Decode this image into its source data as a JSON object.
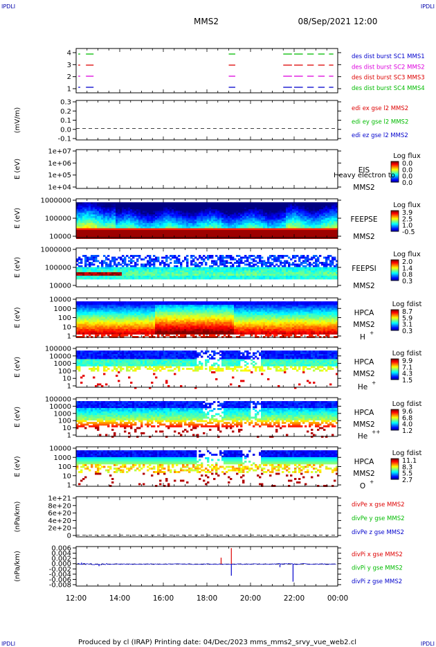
{
  "header": {
    "corner_tl": "IPDLI",
    "corner_tr": "IPDLI",
    "corner_bl": "IPDLI",
    "corner_br": "IPDLI",
    "spacecraft": "MMS2",
    "datetime": "08/Sep/2021 12:00"
  },
  "footer": {
    "text": "Produced by cl (IRAP)   Printing date: 04/Dec/2023   mms_mms2_srvy_vue_web2.cl"
  },
  "colors": {
    "blue": "#0000cc",
    "magenta": "#dd00dd",
    "red": "#dd0000",
    "green": "#00bb00"
  },
  "chart_data": [
    {
      "type": "line",
      "panel": "burst",
      "yticks": [
        "4",
        "3",
        "2",
        "1"
      ],
      "yrange": [
        0.5,
        4.5
      ],
      "legend": [
        {
          "text": "des dist burst SC1 MMS1",
          "color": "#0000cc"
        },
        {
          "text": "des dist burst SC2 MMS2",
          "color": "#dd00dd"
        },
        {
          "text": "des dist burst SC3 MMS3",
          "color": "#dd0000"
        },
        {
          "text": "des dist burst SC4 MMS4",
          "color": "#00bb00"
        }
      ],
      "segments": [
        {
          "level": 4,
          "color": "#00bb00",
          "spans": [
            [
              12.45,
              12.8
            ],
            [
              19.0,
              19.3
            ],
            [
              21.5,
              21.9
            ],
            [
              22.0,
              22.4
            ],
            [
              22.6,
              22.9
            ],
            [
              23.1,
              23.4
            ],
            [
              23.6,
              23.8
            ]
          ]
        },
        {
          "level": 3,
          "color": "#dd0000",
          "spans": [
            [
              12.45,
              12.8
            ],
            [
              19.0,
              19.3
            ],
            [
              21.5,
              21.9
            ],
            [
              22.0,
              22.4
            ],
            [
              22.6,
              22.9
            ],
            [
              23.1,
              23.4
            ],
            [
              23.6,
              23.8
            ]
          ]
        },
        {
          "level": 2,
          "color": "#dd00dd",
          "spans": [
            [
              12.45,
              12.8
            ],
            [
              19.0,
              19.3
            ],
            [
              21.5,
              21.9
            ],
            [
              22.0,
              22.4
            ],
            [
              22.6,
              22.9
            ],
            [
              23.1,
              23.4
            ],
            [
              23.6,
              23.8
            ]
          ]
        },
        {
          "level": 1,
          "color": "#0000cc",
          "spans": [
            [
              12.45,
              12.8
            ],
            [
              19.0,
              19.3
            ],
            [
              21.5,
              21.9
            ],
            [
              22.0,
              22.4
            ],
            [
              22.6,
              22.9
            ],
            [
              23.1,
              23.4
            ],
            [
              23.6,
              23.8
            ]
          ]
        }
      ]
    },
    {
      "type": "line",
      "panel": "edi",
      "ylabel": "(mV/m)",
      "yticks": [
        "0.3",
        "0.2",
        "0.1",
        "0.0",
        "-0.1"
      ],
      "yrange": [
        -0.13,
        0.32
      ],
      "zero_line": true,
      "legend": [
        {
          "text": "edi ex gse l2 MMS2",
          "color": "#dd0000"
        },
        {
          "text": "edi ey gse l2 MMS2",
          "color": "#00bb00"
        },
        {
          "text": "edi ez gse l2 MMS2",
          "color": "#0000cc"
        }
      ]
    },
    {
      "type": "heatmap",
      "panel": "eis",
      "ylabel": "E (eV)",
      "yticks": [
        "1e+07",
        "1e+06",
        "1e+05",
        "1e+04"
      ],
      "instrument": [
        "EIS",
        "MMS2"
      ],
      "overlay": "Heavy electron to",
      "cbar_title": "Log flux",
      "cbar_ticks": [
        "0.0",
        "0.0",
        "0.0",
        "0.0"
      ],
      "style": "empty"
    },
    {
      "type": "heatmap",
      "panel": "feepse",
      "ylabel": "E (eV)",
      "yticks": [
        "1000000",
        "100000",
        "10000"
      ],
      "instrument": [
        "FEEPSE",
        "MMS2"
      ],
      "cbar_title": "Log flux",
      "cbar_ticks": [
        "3.9",
        "2.5",
        "1.0",
        "-0.5"
      ],
      "style": "feeps_e"
    },
    {
      "type": "heatmap",
      "panel": "feepsi",
      "ylabel": "E (eV)",
      "yticks": [
        "1000000",
        "100000",
        "10000"
      ],
      "instrument": [
        "FEEPSI",
        "MMS2"
      ],
      "cbar_title": "Log flux",
      "cbar_ticks": [
        "2.0",
        "1.4",
        "0.8",
        "0.3"
      ],
      "style": "feeps_i"
    },
    {
      "type": "heatmap",
      "panel": "hpca_h",
      "ylabel": "E (eV)",
      "yticks": [
        "10000",
        "1000",
        "100",
        "10",
        "1"
      ],
      "instrument": [
        "HPCA",
        "MMS2"
      ],
      "species": "H",
      "charge": "+",
      "cbar_title": "Log fdist",
      "cbar_ticks": [
        "8.7",
        "5.9",
        "3.1",
        "0.3"
      ],
      "style": "hpca_h"
    },
    {
      "type": "heatmap",
      "panel": "hpca_he1",
      "ylabel": "E (eV)",
      "yticks": [
        "100000",
        "10000",
        "1000",
        "100",
        "10",
        "1"
      ],
      "instrument": [
        "HPCA",
        "MMS2"
      ],
      "species": "He",
      "charge": "+",
      "cbar_title": "Log fdist",
      "cbar_ticks": [
        "9.9",
        "7.1",
        "4.3",
        "1.5"
      ],
      "style": "hpca_he1"
    },
    {
      "type": "heatmap",
      "panel": "hpca_he2",
      "ylabel": "E (eV)",
      "yticks": [
        "100000",
        "10000",
        "1000",
        "100",
        "10",
        "1"
      ],
      "instrument": [
        "HPCA",
        "MMS2"
      ],
      "species": "He",
      "charge": "++",
      "cbar_title": "Log fdist",
      "cbar_ticks": [
        "9.6",
        "6.8",
        "4.0",
        "1.2"
      ],
      "style": "hpca_he2"
    },
    {
      "type": "heatmap",
      "panel": "hpca_o",
      "ylabel": "E (eV)",
      "yticks": [
        "10000",
        "1000",
        "100",
        "10",
        "1"
      ],
      "instrument": [
        "HPCA",
        "MMS2"
      ],
      "species": "O",
      "charge": "+",
      "cbar_title": "Log fdist",
      "cbar_ticks": [
        "11.1",
        "8.3",
        "5.5",
        "2.7"
      ],
      "style": "hpca_o"
    },
    {
      "type": "line",
      "panel": "divpe",
      "ylabel": "(nPa/km)",
      "yticks": [
        "1e+21",
        "8e+20",
        "6e+20",
        "4e+20",
        "2e+20",
        "0"
      ],
      "yrange": [
        -5e+19,
        1.05e+21
      ],
      "zero_line": true,
      "legend": [
        {
          "text": "divPe x gse MMS2",
          "color": "#dd0000"
        },
        {
          "text": "divPe y gse MMS2",
          "color": "#00bb00"
        },
        {
          "text": "divPe z gse MMS2",
          "color": "#0000cc"
        }
      ]
    },
    {
      "type": "line",
      "panel": "divpi",
      "ylabel": "(nPa/km)",
      "yticks": [
        "0.006",
        "0.004",
        "0.002",
        "0.000",
        "-0.002",
        "-0.004",
        "-0.006",
        "-0.008"
      ],
      "yrange": [
        -0.0085,
        0.0068
      ],
      "zero_line": true,
      "legend": [
        {
          "text": "divPi x gse MMS2",
          "color": "#dd0000"
        },
        {
          "text": "divPi y gse MMS2",
          "color": "#00bb00"
        },
        {
          "text": "divPi z gse MMS2",
          "color": "#0000cc"
        }
      ],
      "spikes": [
        {
          "t": 18.65,
          "v": 0.0025,
          "color": "#dd0000"
        },
        {
          "t": 19.12,
          "v": 0.0062,
          "color": "#dd0000"
        },
        {
          "t": 19.12,
          "v": -0.0045,
          "color": "#0000cc"
        },
        {
          "t": 21.95,
          "v": -0.0068,
          "color": "#0000cc"
        },
        {
          "t": 21.35,
          "v": -0.0012,
          "color": "#0000cc"
        },
        {
          "t": 12.25,
          "v": 0.0006,
          "color": "#0000cc"
        },
        {
          "t": 13.05,
          "v": -0.0008,
          "color": "#0000cc"
        }
      ]
    }
  ],
  "xaxis": {
    "ticks": [
      "12:00",
      "14:00",
      "16:00",
      "18:00",
      "20:00",
      "22:00",
      "00:00"
    ],
    "range_hours": [
      12,
      24
    ]
  }
}
